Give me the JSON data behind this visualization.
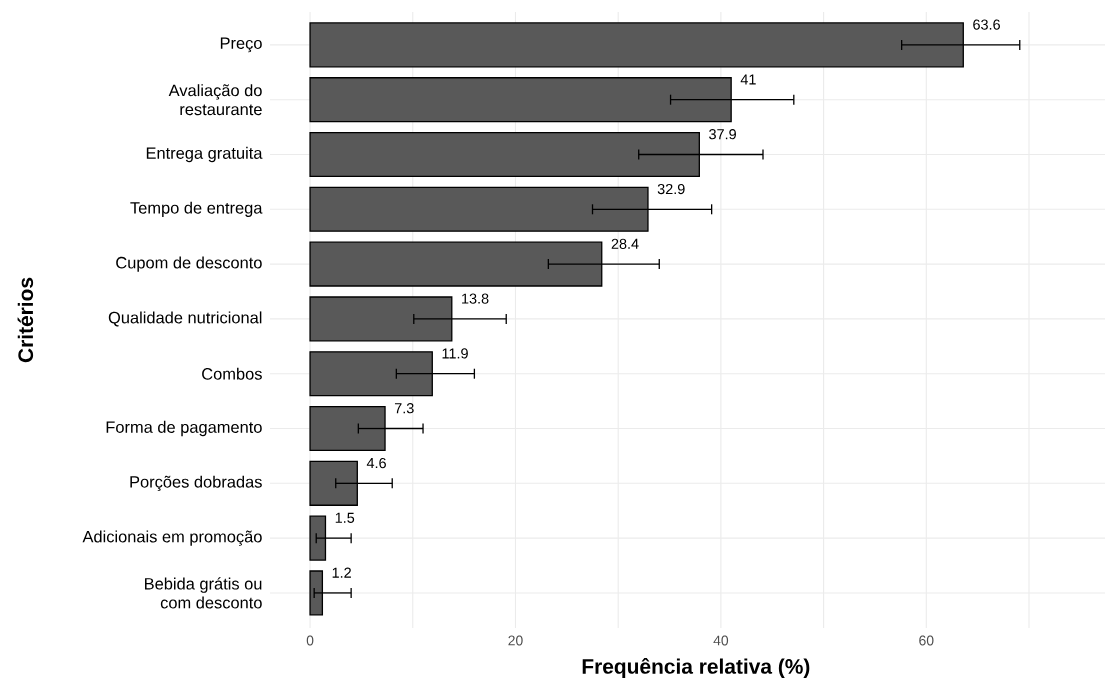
{
  "chart_data": {
    "type": "bar",
    "orientation": "horizontal",
    "xlabel": "Frequência relativa (%)",
    "ylabel": "Critérios",
    "categories": [
      "Preço",
      "Avaliação do\nrestaurante",
      "Entrega gratuita",
      "Tempo de entrega",
      "Cupom de desconto",
      "Qualidade nutricional",
      "Combos",
      "Forma de pagamento",
      "Porções dobradas",
      "Adicionais em promoção",
      "Bebida grátis ou\ncom desconto"
    ],
    "values": [
      63.6,
      41,
      37.9,
      32.9,
      28.4,
      13.8,
      11.9,
      7.3,
      4.6,
      1.5,
      1.2
    ],
    "errors": [
      [
        57.6,
        69.1
      ],
      [
        35.1,
        47.1
      ],
      [
        32.0,
        44.1
      ],
      [
        27.5,
        39.1
      ],
      [
        23.2,
        34.0
      ],
      [
        10.1,
        19.1
      ],
      [
        8.4,
        16.0
      ],
      [
        4.7,
        11.0
      ],
      [
        2.5,
        8.0
      ],
      [
        0.6,
        4.0
      ],
      [
        0.4,
        4.0
      ]
    ],
    "color": "#595959",
    "data_labels": true,
    "grid": true,
    "xlim": [
      -3.9,
      77.4
    ],
    "xticks": [
      0,
      {
        "value": 10,
        "label": null
      },
      20,
      {
        "value": 30,
        "label": null
      },
      40,
      {
        "value": 50,
        "label": null
      },
      60,
      {
        "value": 70,
        "label": null
      }
    ]
  }
}
